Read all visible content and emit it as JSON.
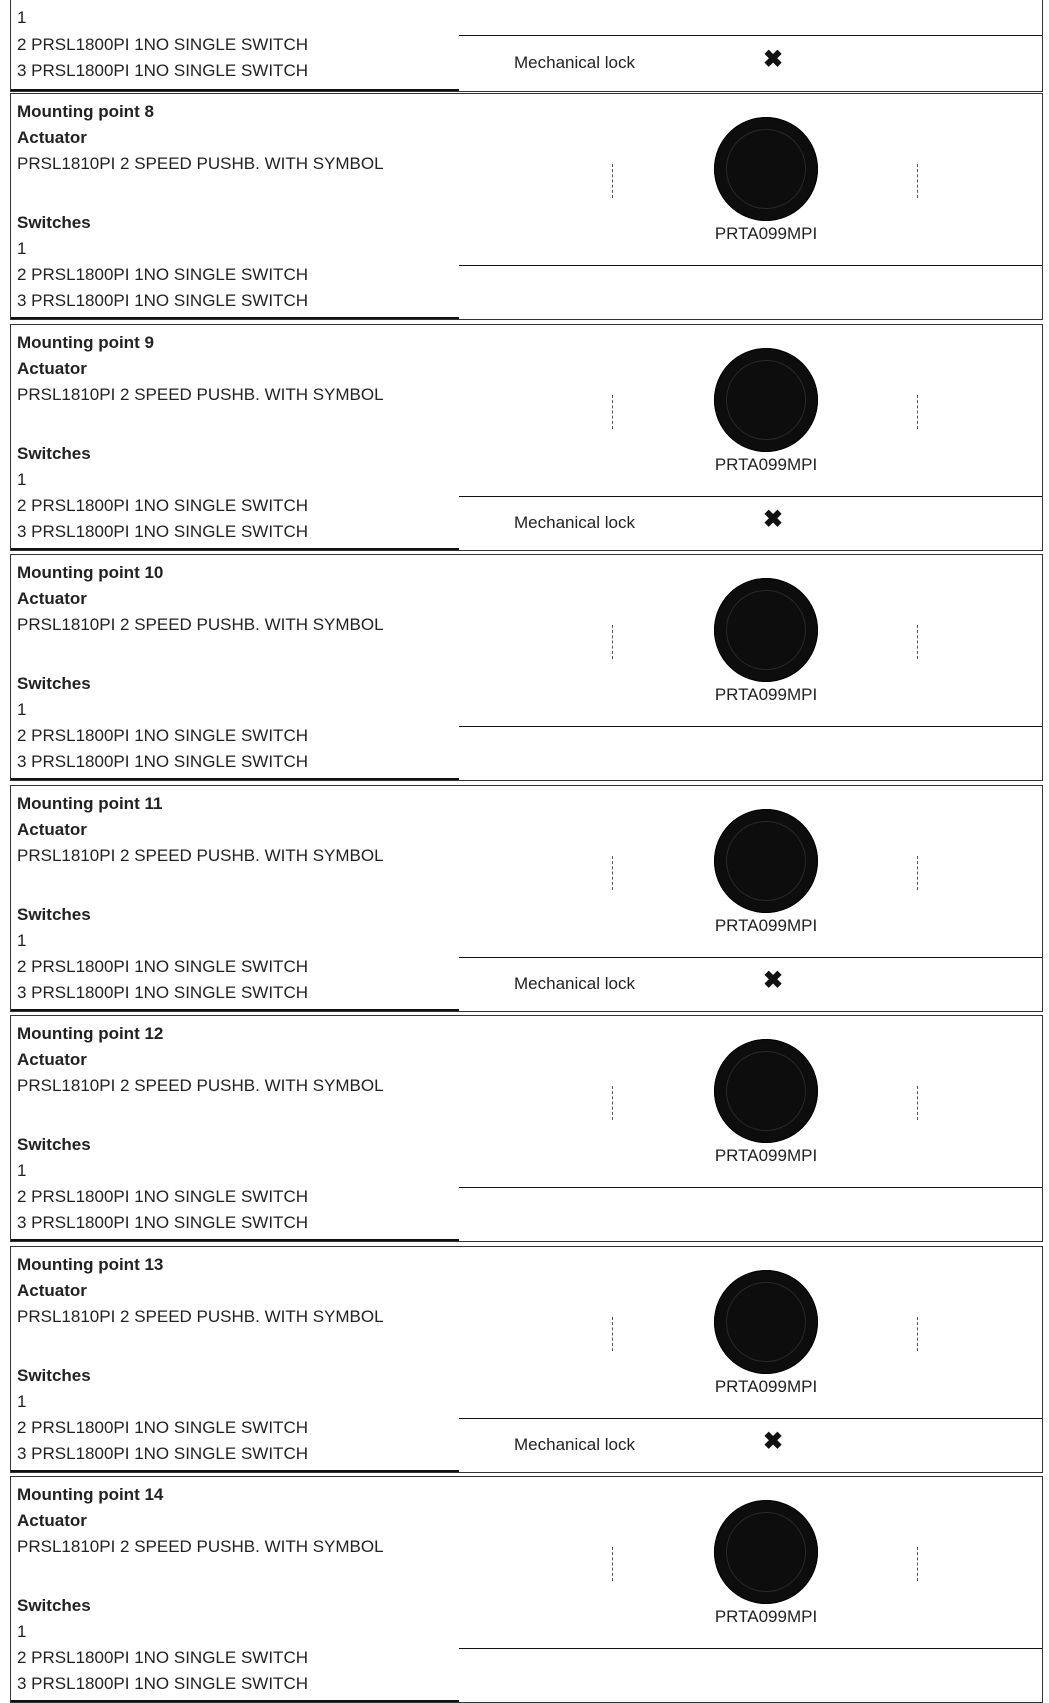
{
  "top_fragment": {
    "switch_1": "1",
    "switch_2": "2  PRSL1800PI 1NO SINGLE SWITCH",
    "switch_3": "3  PRSL1800PI 1NO SINGLE SWITCH",
    "lock_label": "Mechanical lock",
    "lock_symbol": "✖"
  },
  "mounting_points": [
    {
      "title": "Mounting point 8",
      "actuator_heading": "Actuator",
      "actuator": "PRSL1810PI 2 SPEED PUSHB. WITH SYMBOL",
      "switches_heading": "Switches",
      "switch_1": "1",
      "switch_2": "2  PRSL1800PI 1NO SINGLE SWITCH",
      "switch_3": "3  PRSL1800PI 1NO SINGLE SWITCH",
      "part": "PRTA099MPI",
      "lock_label": "",
      "lock_symbol": ""
    },
    {
      "title": "Mounting point 9",
      "actuator_heading": "Actuator",
      "actuator": "PRSL1810PI 2 SPEED PUSHB. WITH SYMBOL",
      "switches_heading": "Switches",
      "switch_1": "1",
      "switch_2": "2  PRSL1800PI 1NO SINGLE SWITCH",
      "switch_3": "3  PRSL1800PI 1NO SINGLE SWITCH",
      "part": "PRTA099MPI",
      "lock_label": "Mechanical lock",
      "lock_symbol": "✖"
    },
    {
      "title": "Mounting point 10",
      "actuator_heading": "Actuator",
      "actuator": "PRSL1810PI 2 SPEED PUSHB. WITH SYMBOL",
      "switches_heading": "Switches",
      "switch_1": "1",
      "switch_2": "2  PRSL1800PI 1NO SINGLE SWITCH",
      "switch_3": "3  PRSL1800PI 1NO SINGLE SWITCH",
      "part": "PRTA099MPI",
      "lock_label": "",
      "lock_symbol": ""
    },
    {
      "title": "Mounting point 11",
      "actuator_heading": "Actuator",
      "actuator": "PRSL1810PI 2 SPEED PUSHB. WITH SYMBOL",
      "switches_heading": "Switches",
      "switch_1": "1",
      "switch_2": "2  PRSL1800PI 1NO SINGLE SWITCH",
      "switch_3": "3  PRSL1800PI 1NO SINGLE SWITCH",
      "part": "PRTA099MPI",
      "lock_label": "Mechanical lock",
      "lock_symbol": "✖"
    },
    {
      "title": "Mounting point 12",
      "actuator_heading": "Actuator",
      "actuator": "PRSL1810PI 2 SPEED PUSHB. WITH SYMBOL",
      "switches_heading": "Switches",
      "switch_1": "1",
      "switch_2": "2  PRSL1800PI 1NO SINGLE SWITCH",
      "switch_3": "3  PRSL1800PI 1NO SINGLE SWITCH",
      "part": "PRTA099MPI",
      "lock_label": "",
      "lock_symbol": ""
    },
    {
      "title": "Mounting point 13",
      "actuator_heading": "Actuator",
      "actuator": "PRSL1810PI 2 SPEED PUSHB. WITH SYMBOL",
      "switches_heading": "Switches",
      "switch_1": "1",
      "switch_2": "2  PRSL1800PI 1NO SINGLE SWITCH",
      "switch_3": "3  PRSL1800PI 1NO SINGLE SWITCH",
      "part": "PRTA099MPI",
      "lock_label": "Mechanical lock",
      "lock_symbol": "✖"
    },
    {
      "title": "Mounting point 14",
      "actuator_heading": "Actuator",
      "actuator": "PRSL1810PI 2 SPEED PUSHB. WITH SYMBOL",
      "switches_heading": "Switches",
      "switch_1": "1",
      "switch_2": "2  PRSL1800PI 1NO SINGLE SWITCH",
      "switch_3": "3  PRSL1800PI 1NO SINGLE SWITCH",
      "part": "PRTA099MPI",
      "lock_label": "",
      "lock_symbol": ""
    }
  ]
}
